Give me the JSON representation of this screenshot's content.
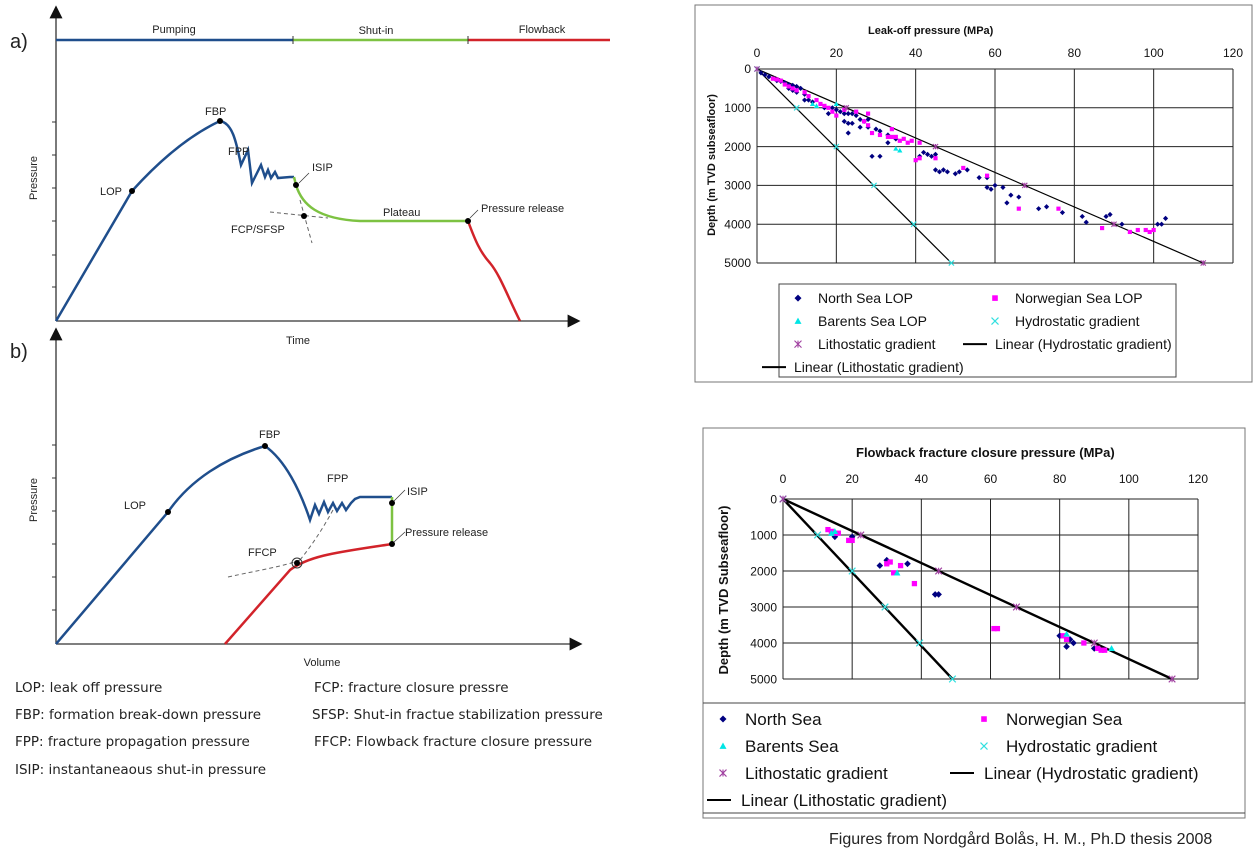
{
  "diagram_a": {
    "panel_label": "a)",
    "phases": [
      "Pumping",
      "Shut-in",
      "Flowback"
    ],
    "phase_colors": [
      "#1f4e8c",
      "#7dc242",
      "#d2232a"
    ],
    "y_label": "Pressure",
    "x_label": "Time",
    "points": {
      "lop": "LOP",
      "fbp": "FBP",
      "fpp": "FPP",
      "isip": "ISIP",
      "fcp": "FCP/SFSP",
      "plateau": "Plateau",
      "release": "Pressure release"
    }
  },
  "diagram_b": {
    "panel_label": "b)",
    "y_label": "Pressure",
    "x_label": "Volume",
    "points": {
      "lop": "LOP",
      "fbp": "FBP",
      "fpp": "FPP",
      "isip": "ISIP",
      "ffcp": "FFCP",
      "release": "Pressure release"
    }
  },
  "definitions": [
    "LOP: leak off pressure",
    "FBP: formation break-down pressure",
    "FPP: fracture propagation pressure",
    "ISIP: instantaneaous shut-in pressure",
    "FCP: fracture closure pressre",
    "SFSP: Shut-in fractue stabilization pressure",
    "FFCP: Flowback fracture closure pressure"
  ],
  "caption": "Figures from Nordgård Bolås, H. M., Ph.D thesis 2008",
  "chart_data": [
    {
      "type": "scatter",
      "title": "Leak-off pressure (MPa)",
      "xlabel": "Leak-off pressure (MPa)",
      "ylabel": "Depth (m TVD subseafloor)",
      "xlim": [
        0,
        120
      ],
      "ylim": [
        0,
        5000
      ],
      "xticks": [
        "0",
        "20",
        "40",
        "60",
        "80",
        "100",
        "120"
      ],
      "yticks": [
        "0",
        "1000",
        "2000",
        "3000",
        "4000",
        "5000"
      ],
      "grid": true,
      "legend_position": "bottom",
      "series": [
        {
          "name": "North Sea LOP",
          "marker": "diamond",
          "color": "#000080",
          "points": [
            [
              1,
              100
            ],
            [
              2,
              150
            ],
            [
              3,
              200
            ],
            [
              5,
              300
            ],
            [
              6,
              320
            ],
            [
              7,
              350
            ],
            [
              8,
              400
            ],
            [
              9,
              420
            ],
            [
              10,
              450
            ],
            [
              11,
              500
            ],
            [
              8,
              500
            ],
            [
              9,
              550
            ],
            [
              10,
              600
            ],
            [
              12,
              650
            ],
            [
              12,
              800
            ],
            [
              13,
              800
            ],
            [
              14,
              850
            ],
            [
              17,
              1000
            ],
            [
              18,
              1150
            ],
            [
              19,
              1000
            ],
            [
              20,
              1050
            ],
            [
              21,
              1100
            ],
            [
              22,
              1150
            ],
            [
              23,
              1150
            ],
            [
              24,
              1150
            ],
            [
              25,
              1200
            ],
            [
              22,
              1350
            ],
            [
              23,
              1400
            ],
            [
              24,
              1400
            ],
            [
              26,
              1300
            ],
            [
              27,
              1350
            ],
            [
              28,
              1300
            ],
            [
              26,
              1500
            ],
            [
              28,
              1500
            ],
            [
              30,
              1550
            ],
            [
              31,
              1600
            ],
            [
              33,
              1700
            ],
            [
              33,
              1900
            ],
            [
              29,
              2250
            ],
            [
              31,
              2250
            ],
            [
              23,
              1650
            ],
            [
              35,
              1800
            ],
            [
              41,
              2250
            ],
            [
              42,
              2150
            ],
            [
              43,
              2200
            ],
            [
              44,
              2250
            ],
            [
              45,
              2200
            ],
            [
              45,
              2600
            ],
            [
              46,
              2650
            ],
            [
              47,
              2600
            ],
            [
              48,
              2650
            ],
            [
              50,
              2700
            ],
            [
              51,
              2650
            ],
            [
              53,
              2600
            ],
            [
              56,
              2800
            ],
            [
              58,
              2800
            ],
            [
              58,
              3050
            ],
            [
              59,
              3100
            ],
            [
              60,
              3000
            ],
            [
              62,
              3050
            ],
            [
              63,
              3450
            ],
            [
              64,
              3250
            ],
            [
              66,
              3300
            ],
            [
              71,
              3600
            ],
            [
              73,
              3550
            ],
            [
              77,
              3700
            ],
            [
              82,
              3800
            ],
            [
              83,
              3950
            ],
            [
              88,
              3800
            ],
            [
              89,
              3750
            ],
            [
              92,
              4000
            ],
            [
              101,
              4000
            ],
            [
              102,
              4000
            ],
            [
              103,
              3850
            ]
          ]
        },
        {
          "name": "Norwegian Sea LOP",
          "marker": "square",
          "color": "#ff00ff",
          "points": [
            [
              4,
              250
            ],
            [
              5,
              270
            ],
            [
              6,
              300
            ],
            [
              7,
              400
            ],
            [
              8,
              450
            ],
            [
              9,
              500
            ],
            [
              10,
              550
            ],
            [
              12,
              600
            ],
            [
              13,
              700
            ],
            [
              15,
              800
            ],
            [
              16,
              900
            ],
            [
              17,
              950
            ],
            [
              18,
              1000
            ],
            [
              19,
              1100
            ],
            [
              20,
              1200
            ],
            [
              22,
              1050
            ],
            [
              25,
              1100
            ],
            [
              28,
              1150
            ],
            [
              27,
              1350
            ],
            [
              28,
              1450
            ],
            [
              29,
              1650
            ],
            [
              31,
              1700
            ],
            [
              33,
              1750
            ],
            [
              34,
              1750
            ],
            [
              35,
              1750
            ],
            [
              36,
              1850
            ],
            [
              37,
              1800
            ],
            [
              38,
              1900
            ],
            [
              39,
              1850
            ],
            [
              40,
              2350
            ],
            [
              41,
              2300
            ],
            [
              41,
              1900
            ],
            [
              45,
              2300
            ],
            [
              52,
              2550
            ],
            [
              58,
              2750
            ],
            [
              66,
              3600
            ],
            [
              76,
              3600
            ],
            [
              87,
              4100
            ],
            [
              94,
              4200
            ],
            [
              96,
              4150
            ],
            [
              98,
              4150
            ],
            [
              99,
              4200
            ],
            [
              100,
              4150
            ],
            [
              34,
              1550
            ]
          ]
        },
        {
          "name": "Barents Sea LOP",
          "marker": "triangle",
          "color": "#00e5e5",
          "points": [
            [
              14,
              900
            ],
            [
              15,
              950
            ],
            [
              20,
              900
            ],
            [
              35,
              2050
            ],
            [
              36,
              2100
            ]
          ]
        },
        {
          "name": "Hydrostatic gradient",
          "marker": "x",
          "color": "#33e0e0",
          "points": [
            [
              0,
              0
            ],
            [
              10,
              1000
            ],
            [
              20,
              2000
            ],
            [
              29.5,
              3000
            ],
            [
              39.5,
              4000
            ],
            [
              49,
              5000
            ]
          ]
        },
        {
          "name": "Lithostatic gradient",
          "marker": "asterisk",
          "color": "#a040a0",
          "points": [
            [
              0,
              0
            ],
            [
              22.5,
              1000
            ],
            [
              45,
              2000
            ],
            [
              67.5,
              3000
            ],
            [
              90,
              4000
            ],
            [
              112.5,
              5000
            ]
          ]
        },
        {
          "name": "Linear (Hydrostatic gradient)",
          "marker": "line",
          "color": "#000000",
          "points": [
            [
              0,
              0
            ],
            [
              49,
              5000
            ]
          ]
        },
        {
          "name": "Linear (Lithostatic gradient)",
          "marker": "line",
          "color": "#000000",
          "points": [
            [
              0,
              0
            ],
            [
              112.5,
              5000
            ]
          ]
        }
      ]
    },
    {
      "type": "scatter",
      "title": "Flowback fracture closure pressure (MPa)",
      "xlabel": "Flowback fracture closure pressure (MPa)",
      "ylabel": "Depth (m TVD Subseafloor)",
      "xlim": [
        0,
        120
      ],
      "ylim": [
        0,
        5000
      ],
      "xticks": [
        "0",
        "20",
        "40",
        "60",
        "80",
        "100",
        "120"
      ],
      "yticks": [
        "0",
        "1000",
        "2000",
        "3000",
        "4000",
        "5000"
      ],
      "grid": true,
      "legend_position": "bottom",
      "series": [
        {
          "name": "North Sea",
          "marker": "diamond",
          "color": "#000080",
          "points": [
            [
              15,
              1050
            ],
            [
              20,
              1050
            ],
            [
              28,
              1850
            ],
            [
              30,
              1700
            ],
            [
              36,
              1800
            ],
            [
              44,
              2650
            ],
            [
              45,
              2650
            ],
            [
              80,
              3800
            ],
            [
              82,
              4100
            ],
            [
              83,
              3900
            ],
            [
              84,
              4000
            ],
            [
              90,
              4150
            ]
          ]
        },
        {
          "name": "Norwegian Sea",
          "marker": "square",
          "color": "#ff00ff",
          "points": [
            [
              13,
              850
            ],
            [
              14,
              900
            ],
            [
              15,
              950
            ],
            [
              16,
              950
            ],
            [
              19,
              1150
            ],
            [
              20,
              1150
            ],
            [
              30,
              1800
            ],
            [
              31,
              1750
            ],
            [
              32,
              2050
            ],
            [
              34,
              1850
            ],
            [
              38,
              2350
            ],
            [
              61,
              3600
            ],
            [
              62,
              3600
            ],
            [
              81,
              3800
            ],
            [
              82,
              3900
            ],
            [
              87,
              4000
            ],
            [
              91,
              4150
            ],
            [
              92,
              4200
            ],
            [
              93,
              4200
            ]
          ]
        },
        {
          "name": "Barents Sea",
          "marker": "triangle",
          "color": "#00e5e5",
          "points": [
            [
              14,
              950
            ],
            [
              15,
              900
            ],
            [
              33,
              2050
            ],
            [
              82,
              3750
            ],
            [
              95,
              4150
            ]
          ]
        },
        {
          "name": "Hydrostatic gradient",
          "marker": "x",
          "color": "#33e0e0",
          "points": [
            [
              0,
              0
            ],
            [
              10,
              1000
            ],
            [
              20,
              2000
            ],
            [
              29.5,
              3000
            ],
            [
              39.5,
              4000
            ],
            [
              49,
              5000
            ]
          ]
        },
        {
          "name": "Lithostatic gradient",
          "marker": "asterisk",
          "color": "#a040a0",
          "points": [
            [
              0,
              0
            ],
            [
              22.5,
              1000
            ],
            [
              45,
              2000
            ],
            [
              67.5,
              3000
            ],
            [
              90,
              4000
            ],
            [
              112.5,
              5000
            ]
          ]
        },
        {
          "name": "Linear (Hydrostatic gradient)",
          "marker": "line",
          "color": "#000000",
          "points": [
            [
              0,
              0
            ],
            [
              49,
              5000
            ]
          ]
        },
        {
          "name": "Linear (Lithostatic gradient)",
          "marker": "line",
          "color": "#000000",
          "points": [
            [
              0,
              0
            ],
            [
              112.5,
              5000
            ]
          ]
        }
      ]
    }
  ]
}
